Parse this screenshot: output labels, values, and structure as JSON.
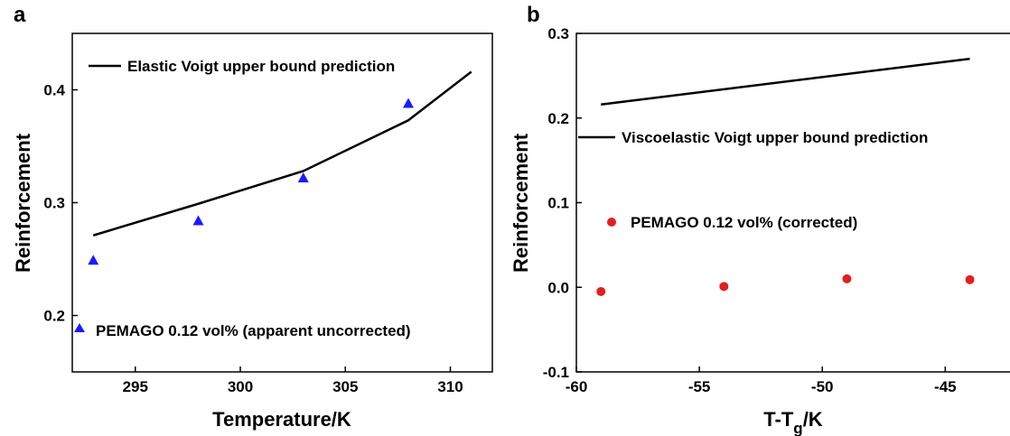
{
  "chart_data": [
    {
      "panel_label": "a",
      "type": "scatter",
      "xlabel": "Temperature/K",
      "ylabel": "Reinforcement",
      "xlim": [
        292,
        312
      ],
      "ylim": [
        0.15,
        0.45
      ],
      "xticks": [
        295,
        300,
        305,
        310
      ],
      "yticks": [
        0.2,
        0.3,
        0.4
      ],
      "xtick_labels": [
        "295",
        "300",
        "305",
        "310"
      ],
      "ytick_labels": [
        "0.2",
        "0.3",
        "0.4"
      ],
      "series": [
        {
          "name": "Elastic Voigt upper bound prediction",
          "kind": "line",
          "color": "#000000",
          "x": [
            293,
            298,
            303,
            308,
            311
          ],
          "y": [
            0.271,
            0.299,
            0.328,
            0.373,
            0.416
          ]
        },
        {
          "name": "PEMAGO 0.12 vol% (apparent uncorrected)",
          "kind": "triangle",
          "color": "#1a1aff",
          "x": [
            293,
            298,
            303,
            308
          ],
          "y": [
            0.249,
            0.284,
            0.322,
            0.388
          ]
        }
      ]
    },
    {
      "panel_label": "b",
      "type": "scatter",
      "xlabel": "T-T",
      "xlabel_sub": "g",
      "xlabel_suffix": "/K",
      "ylabel": "Reinforcement",
      "xlim": [
        -60,
        -42
      ],
      "ylim": [
        -0.1,
        0.3
      ],
      "xticks": [
        -60,
        -55,
        -50,
        -45
      ],
      "yticks": [
        -0.1,
        0.0,
        0.1,
        0.2,
        0.3
      ],
      "xtick_labels": [
        "-60",
        "-55",
        "-50",
        "-45"
      ],
      "ytick_labels": [
        "-0.1",
        "0.0",
        "0.1",
        "0.2",
        "0.3"
      ],
      "series": [
        {
          "name": "Viscoelastic Voigt upper bound prediction",
          "kind": "line",
          "color": "#000000",
          "x": [
            -59,
            -44
          ],
          "y": [
            0.216,
            0.27
          ]
        },
        {
          "name": "PEMAGO 0.12 vol% (corrected)",
          "kind": "circle",
          "color": "#e02020",
          "x": [
            -59,
            -54,
            -49,
            -44
          ],
          "y": [
            -0.005,
            0.001,
            0.01,
            0.009
          ]
        }
      ]
    }
  ]
}
